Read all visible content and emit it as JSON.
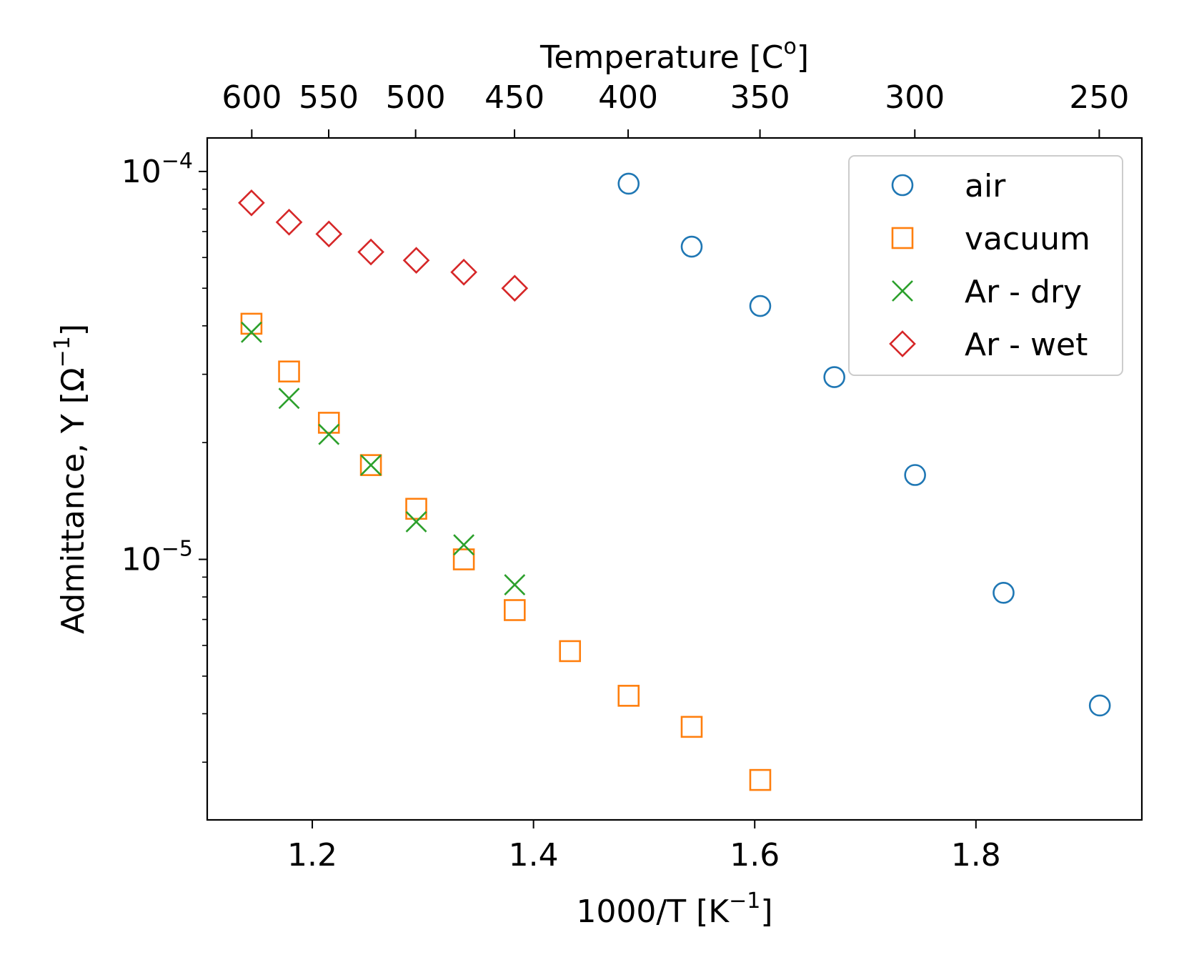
{
  "chart_data": {
    "type": "scatter",
    "title": "",
    "xlabel": {
      "base": "1000/T  [K",
      "sup": "−1",
      "tail": "]"
    },
    "ylabel": {
      "base": "Admittance, Y  [Ω",
      "sup": "−1",
      "tail": "]"
    },
    "top_xlabel": {
      "base": "Temperature  [C",
      "sup": "o",
      "tail": "]"
    },
    "x_range": [
      1.105,
      1.95
    ],
    "y_range": [
      2.13e-06,
      0.000122
    ],
    "y_scale": "log",
    "x_ticks": [
      {
        "value": 1.2,
        "label": "1.2"
      },
      {
        "value": 1.4,
        "label": "1.4"
      },
      {
        "value": 1.6,
        "label": "1.6"
      },
      {
        "value": 1.8,
        "label": "1.8"
      }
    ],
    "y_major_ticks": [
      {
        "value": 1e-05,
        "base": "10",
        "exp": "−5"
      },
      {
        "value": 0.0001,
        "base": "10",
        "exp": "−4"
      }
    ],
    "y_minor_ticks": [
      3e-06,
      4e-06,
      5e-06,
      6e-06,
      7e-06,
      8e-06,
      9e-06,
      2e-05,
      3e-05,
      4e-05,
      5e-05,
      6e-05,
      7e-05,
      8e-05,
      9e-05
    ],
    "top_axis_ticks": [
      {
        "label": "600",
        "temp_c": 600
      },
      {
        "label": "550",
        "temp_c": 550
      },
      {
        "label": "500",
        "temp_c": 500
      },
      {
        "label": "450",
        "temp_c": 450
      },
      {
        "label": "400",
        "temp_c": 400
      },
      {
        "label": "350",
        "temp_c": 350
      },
      {
        "label": "300",
        "temp_c": 300
      },
      {
        "label": "250",
        "temp_c": 250
      }
    ],
    "legend_position": "top-right",
    "grid": false,
    "series": [
      {
        "name": "air",
        "marker": "circle",
        "color": "#1f77b4",
        "points": [
          [
            1.486,
            9.3e-05
          ],
          [
            1.543,
            6.4e-05
          ],
          [
            1.605,
            4.5e-05
          ],
          [
            1.672,
            2.95e-05
          ],
          [
            1.745,
            1.65e-05
          ],
          [
            1.825,
            8.2e-06
          ],
          [
            1.912,
            4.2e-06
          ]
        ]
      },
      {
        "name": "vacuum",
        "marker": "square",
        "color": "#ff7f0e",
        "points": [
          [
            1.145,
            4.05e-05
          ],
          [
            1.179,
            3.05e-05
          ],
          [
            1.215,
            2.25e-05
          ],
          [
            1.253,
            1.75e-05
          ],
          [
            1.294,
            1.35e-05
          ],
          [
            1.337,
            1e-05
          ],
          [
            1.383,
            7.4e-06
          ],
          [
            1.433,
            5.8e-06
          ],
          [
            1.486,
            4.45e-06
          ],
          [
            1.543,
            3.7e-06
          ],
          [
            1.605,
            2.7e-06
          ]
        ]
      },
      {
        "name": "Ar - dry",
        "marker": "x",
        "color": "#2ca02c",
        "points": [
          [
            1.145,
            3.85e-05
          ],
          [
            1.179,
            2.6e-05
          ],
          [
            1.215,
            2.1e-05
          ],
          [
            1.253,
            1.75e-05
          ],
          [
            1.294,
            1.25e-05
          ],
          [
            1.337,
            1.09e-05
          ],
          [
            1.383,
            8.6e-06
          ]
        ]
      },
      {
        "name": "Ar - wet",
        "marker": "diamond",
        "color": "#d62728",
        "points": [
          [
            1.145,
            8.3e-05
          ],
          [
            1.179,
            7.4e-05
          ],
          [
            1.215,
            6.9e-05
          ],
          [
            1.253,
            6.2e-05
          ],
          [
            1.294,
            5.9e-05
          ],
          [
            1.337,
            5.5e-05
          ],
          [
            1.383,
            5e-05
          ]
        ]
      }
    ]
  }
}
